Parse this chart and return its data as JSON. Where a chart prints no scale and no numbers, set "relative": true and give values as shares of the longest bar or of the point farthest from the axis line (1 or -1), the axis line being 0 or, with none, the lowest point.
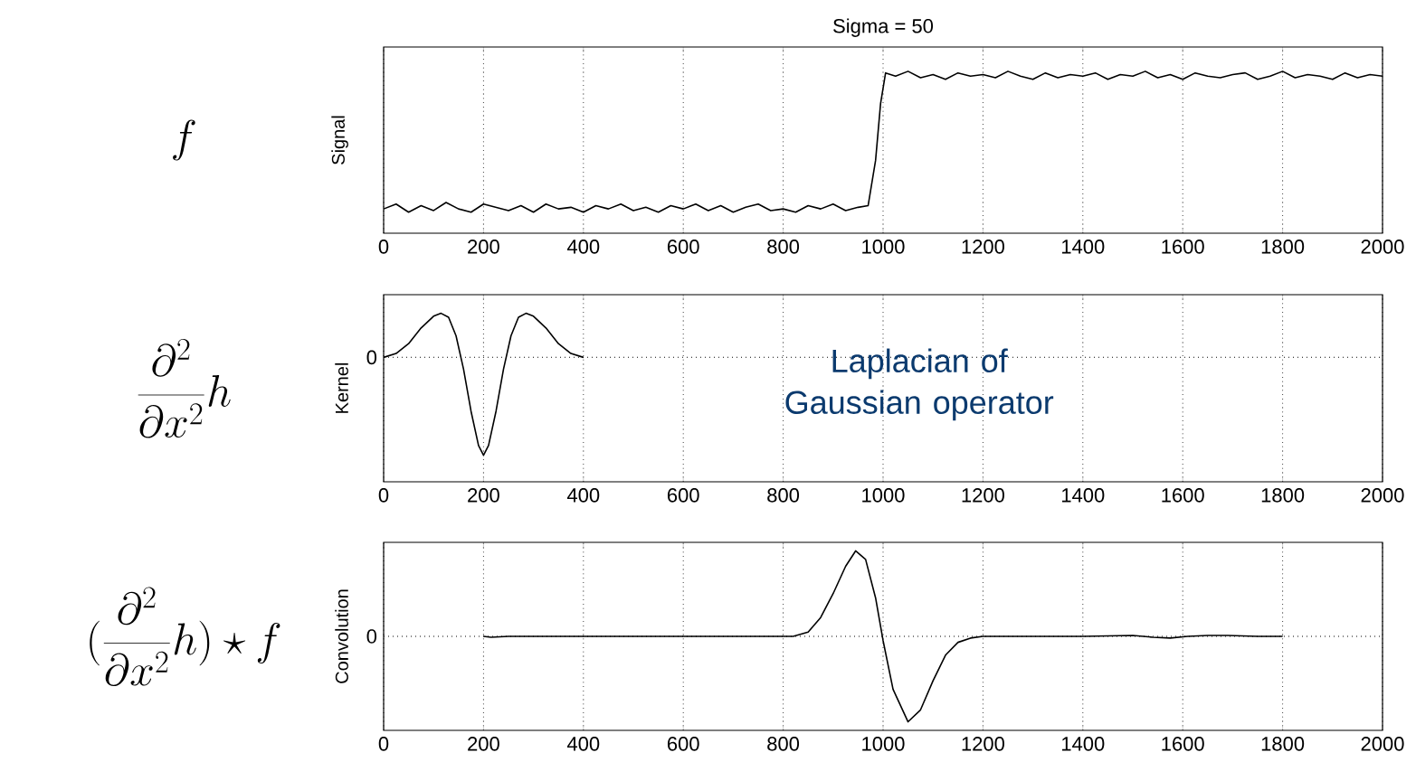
{
  "chart_data": [
    {
      "type": "line",
      "title": "Sigma = 50",
      "ylabel": "Signal",
      "relative": true,
      "grid": "x",
      "line_style": "solid",
      "xlim": [
        0,
        2000
      ],
      "xticks": [
        0,
        200,
        400,
        600,
        800,
        1000,
        1200,
        1400,
        1600,
        1800,
        2000
      ],
      "annotations": [
        "f"
      ],
      "series": [
        {
          "color": "#000000",
          "x": [
            0,
            25,
            50,
            75,
            100,
            125,
            150,
            175,
            200,
            225,
            250,
            275,
            300,
            325,
            350,
            375,
            400,
            425,
            450,
            475,
            500,
            525,
            550,
            575,
            600,
            625,
            650,
            675,
            700,
            725,
            750,
            775,
            800,
            825,
            850,
            875,
            900,
            925,
            950,
            970,
            985,
            995,
            1005,
            1025,
            1050,
            1075,
            1100,
            1125,
            1150,
            1175,
            1200,
            1225,
            1250,
            1275,
            1300,
            1325,
            1350,
            1375,
            1400,
            1425,
            1450,
            1475,
            1500,
            1525,
            1550,
            1575,
            1600,
            1625,
            1650,
            1675,
            1700,
            1725,
            1750,
            1775,
            1800,
            1825,
            1850,
            1875,
            1900,
            1925,
            1950,
            1975,
            2000
          ],
          "values": [
            0.15,
            0.18,
            0.13,
            0.17,
            0.14,
            0.19,
            0.15,
            0.13,
            0.18,
            0.16,
            0.14,
            0.17,
            0.13,
            0.18,
            0.15,
            0.16,
            0.13,
            0.17,
            0.15,
            0.18,
            0.14,
            0.16,
            0.13,
            0.17,
            0.15,
            0.18,
            0.14,
            0.17,
            0.13,
            0.16,
            0.18,
            0.14,
            0.15,
            0.13,
            0.17,
            0.15,
            0.18,
            0.14,
            0.16,
            0.17,
            0.45,
            0.8,
            0.99,
            0.97,
            1.0,
            0.96,
            0.98,
            0.95,
            0.99,
            0.97,
            0.98,
            0.96,
            1.0,
            0.97,
            0.95,
            0.99,
            0.96,
            0.98,
            0.97,
            0.99,
            0.95,
            0.98,
            0.97,
            1.0,
            0.96,
            0.98,
            0.95,
            0.99,
            0.97,
            0.96,
            0.98,
            0.99,
            0.95,
            0.97,
            1.0,
            0.96,
            0.98,
            0.97,
            0.95,
            0.99,
            0.96,
            0.98,
            0.97
          ]
        }
      ]
    },
    {
      "type": "line",
      "ylabel": "Kernel",
      "relative": true,
      "grid": "x",
      "line_style": "solid",
      "xlim": [
        0,
        2000
      ],
      "xticks": [
        0,
        200,
        400,
        600,
        800,
        1000,
        1200,
        1400,
        1600,
        1800,
        2000
      ],
      "annotations": [
        "\\frac{\\partial^2}{\\partial x^2}h",
        "Laplacian of Gaussian operator"
      ],
      "ref_lines": [
        {
          "axis": "y",
          "value": 0,
          "label": "0",
          "line_style": "dotted"
        }
      ],
      "series": [
        {
          "color": "#000000",
          "x": [
            0,
            25,
            50,
            75,
            100,
            115,
            130,
            145,
            160,
            175,
            190,
            200,
            210,
            225,
            240,
            255,
            270,
            285,
            300,
            325,
            350,
            375,
            400
          ],
          "values": [
            0,
            0.04,
            0.14,
            0.3,
            0.42,
            0.45,
            0.41,
            0.22,
            -0.12,
            -0.55,
            -0.9,
            -1.0,
            -0.9,
            -0.55,
            -0.12,
            0.22,
            0.41,
            0.45,
            0.42,
            0.3,
            0.14,
            0.04,
            0
          ]
        }
      ]
    },
    {
      "type": "line",
      "ylabel": "Convolution",
      "relative": true,
      "grid": "x",
      "line_style": "solid",
      "xlim": [
        0,
        2000
      ],
      "xticks": [
        0,
        200,
        400,
        600,
        800,
        1000,
        1200,
        1400,
        1600,
        1800,
        2000
      ],
      "annotations": [
        "(\\frac{\\partial^2}{\\partial x^2}h)\\star f"
      ],
      "ref_lines": [
        {
          "axis": "y",
          "value": 0,
          "label": "0",
          "line_style": "dotted"
        }
      ],
      "series": [
        {
          "color": "#000000",
          "x": [
            200,
            215,
            250,
            400,
            600,
            820,
            850,
            875,
            900,
            925,
            945,
            965,
            985,
            1000,
            1020,
            1050,
            1075,
            1100,
            1125,
            1150,
            1175,
            1200,
            1300,
            1400,
            1500,
            1540,
            1575,
            1610,
            1650,
            1690,
            1750,
            1800
          ],
          "values": [
            0,
            -0.01,
            0,
            0,
            0,
            0,
            0.05,
            0.22,
            0.5,
            0.82,
            1.0,
            0.9,
            0.45,
            -0.05,
            -0.62,
            -1.0,
            -0.86,
            -0.52,
            -0.22,
            -0.07,
            -0.02,
            0,
            0,
            0,
            0.01,
            -0.01,
            -0.02,
            0,
            0.01,
            0.01,
            0,
            0
          ]
        }
      ]
    }
  ]
}
